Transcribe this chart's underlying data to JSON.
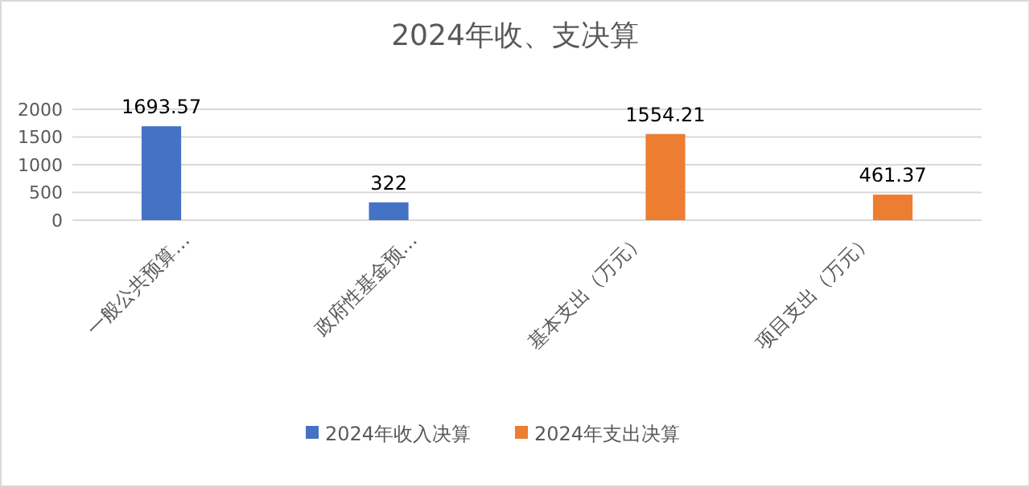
{
  "chart_data": {
    "type": "bar",
    "title": "2024年收、支决算",
    "categories": [
      "一般公共预算…",
      "政府性基金预…",
      "基本支出（万元）",
      "项目支出（万元）"
    ],
    "series": [
      {
        "name": "2024年收入决算",
        "color": "#4472c4",
        "values": [
          1693.57,
          322,
          null,
          null
        ]
      },
      {
        "name": "2024年支出决算",
        "color": "#ed7d31",
        "values": [
          null,
          null,
          1554.21,
          461.37
        ]
      }
    ],
    "ylim": [
      0,
      2000
    ],
    "yticks": [
      0,
      500,
      1000,
      1500,
      2000
    ],
    "grid": "y",
    "legend": "bottom",
    "data_labels": true
  }
}
